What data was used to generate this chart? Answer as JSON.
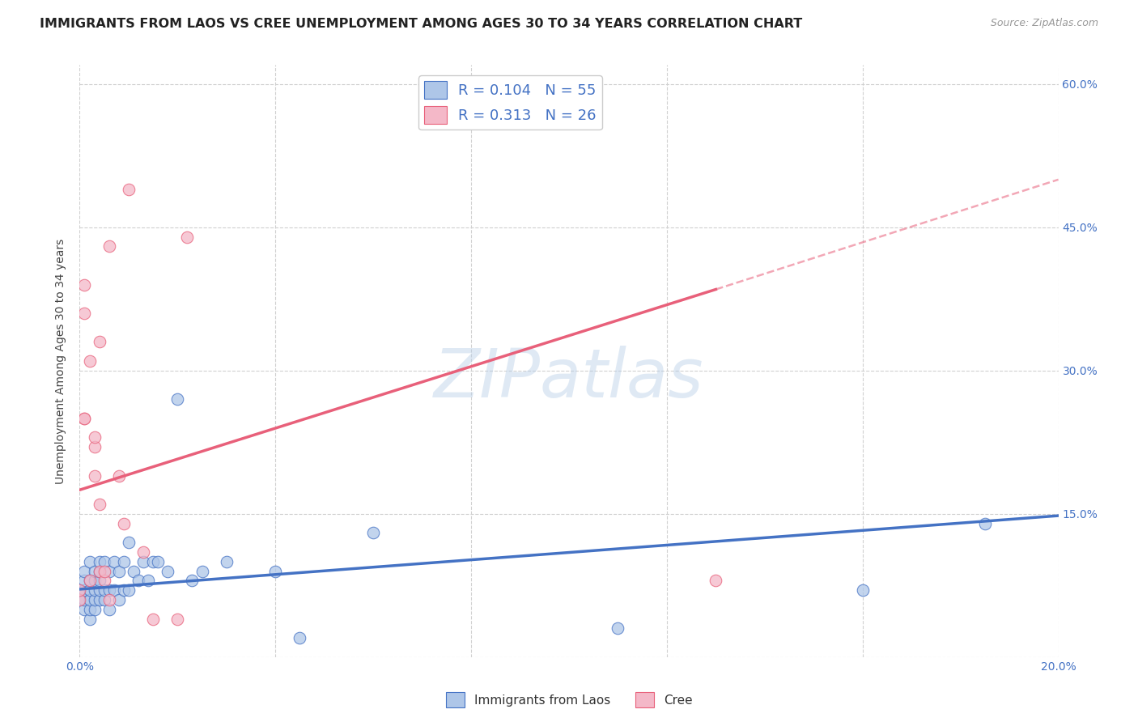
{
  "title": "IMMIGRANTS FROM LAOS VS CREE UNEMPLOYMENT AMONG AGES 30 TO 34 YEARS CORRELATION CHART",
  "source": "Source: ZipAtlas.com",
  "ylabel": "Unemployment Among Ages 30 to 34 years",
  "xlim": [
    0.0,
    0.2
  ],
  "ylim": [
    0.0,
    0.62
  ],
  "xticks": [
    0.0,
    0.04,
    0.08,
    0.12,
    0.16,
    0.2
  ],
  "xtick_labels": [
    "0.0%",
    "",
    "",
    "",
    "",
    "20.0%"
  ],
  "ytick_labels_right": [
    "",
    "15.0%",
    "30.0%",
    "45.0%",
    "60.0%"
  ],
  "ytick_positions_right": [
    0.0,
    0.15,
    0.3,
    0.45,
    0.6
  ],
  "watermark_text": "ZIPatlas",
  "series1_color": "#aec6e8",
  "series2_color": "#f4b8c8",
  "trend1_color": "#4472c4",
  "trend2_color": "#e8607a",
  "legend_R1": "R = 0.104",
  "legend_N1": "N = 55",
  "legend_R2": "R = 0.313",
  "legend_N2": "N = 26",
  "legend_label1": "Immigrants from Laos",
  "legend_label2": "Cree",
  "title_color": "#222222",
  "axis_color": "#4472c4",
  "grid_color": "#d0d0d0",
  "series1_x": [
    0.0,
    0.0,
    0.001,
    0.001,
    0.001,
    0.001,
    0.001,
    0.002,
    0.002,
    0.002,
    0.002,
    0.002,
    0.002,
    0.003,
    0.003,
    0.003,
    0.003,
    0.003,
    0.004,
    0.004,
    0.004,
    0.004,
    0.004,
    0.005,
    0.005,
    0.005,
    0.006,
    0.006,
    0.006,
    0.007,
    0.007,
    0.008,
    0.008,
    0.009,
    0.009,
    0.01,
    0.01,
    0.011,
    0.012,
    0.013,
    0.014,
    0.015,
    0.016,
    0.018,
    0.02,
    0.023,
    0.025,
    0.03,
    0.04,
    0.045,
    0.06,
    0.09,
    0.11,
    0.16,
    0.185
  ],
  "series1_y": [
    0.06,
    0.07,
    0.05,
    0.06,
    0.07,
    0.08,
    0.09,
    0.04,
    0.05,
    0.06,
    0.07,
    0.08,
    0.1,
    0.05,
    0.06,
    0.07,
    0.08,
    0.09,
    0.06,
    0.07,
    0.08,
    0.09,
    0.1,
    0.06,
    0.07,
    0.1,
    0.05,
    0.07,
    0.09,
    0.07,
    0.1,
    0.06,
    0.09,
    0.07,
    0.1,
    0.07,
    0.12,
    0.09,
    0.08,
    0.1,
    0.08,
    0.1,
    0.1,
    0.09,
    0.27,
    0.08,
    0.09,
    0.1,
    0.09,
    0.02,
    0.13,
    0.57,
    0.03,
    0.07,
    0.14
  ],
  "series2_x": [
    0.0,
    0.0,
    0.001,
    0.001,
    0.001,
    0.001,
    0.002,
    0.002,
    0.003,
    0.003,
    0.003,
    0.004,
    0.004,
    0.004,
    0.005,
    0.005,
    0.006,
    0.006,
    0.008,
    0.009,
    0.01,
    0.013,
    0.015,
    0.02,
    0.022,
    0.13
  ],
  "series2_y": [
    0.06,
    0.07,
    0.25,
    0.25,
    0.36,
    0.39,
    0.08,
    0.31,
    0.19,
    0.22,
    0.23,
    0.09,
    0.33,
    0.16,
    0.08,
    0.09,
    0.43,
    0.06,
    0.19,
    0.14,
    0.49,
    0.11,
    0.04,
    0.04,
    0.44,
    0.08
  ],
  "trend1_x0": 0.0,
  "trend1_y0": 0.071,
  "trend1_x1": 0.2,
  "trend1_y1": 0.148,
  "trend2_x0": 0.0,
  "trend2_y0": 0.175,
  "trend2_x1": 0.13,
  "trend2_y1": 0.385,
  "trend2_dash_x0": 0.13,
  "trend2_dash_y0": 0.385,
  "trend2_dash_x1": 0.2,
  "trend2_dash_y1": 0.5,
  "background_color": "#ffffff"
}
